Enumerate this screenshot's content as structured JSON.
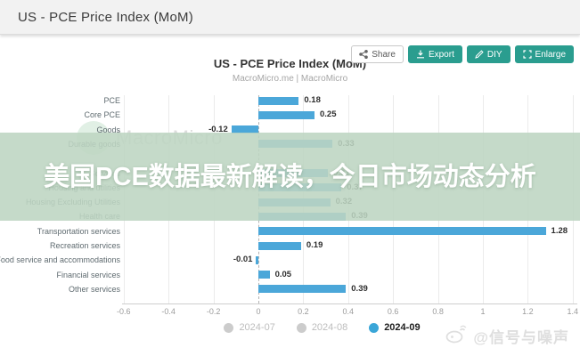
{
  "window": {
    "title": "US - PCE Price Index (MoM)"
  },
  "toolbar": {
    "share": "Share",
    "export": "Export",
    "diy": "DIY",
    "enlarge": "Enlarge"
  },
  "overlay_banner": {
    "text": "美国PCE数据最新解读，今日市场动态分析"
  },
  "watermarks": {
    "brand": "MacroMicro",
    "weibo_handle": "@信号与噪声"
  },
  "chart_data": {
    "type": "bar",
    "orientation": "horizontal",
    "title": "US - PCE Price Index (MoM)",
    "subtitle": "MacroMicro.me | MacroMicro",
    "xlim": [
      -0.6,
      1.4
    ],
    "x_ticks": [
      -0.6,
      -0.4,
      -0.2,
      0,
      0.2,
      0.4,
      0.6,
      0.8,
      1,
      1.2,
      1.4
    ],
    "bar_color": "#4BA7D9",
    "grid": true,
    "categories": [
      "PCE",
      "Core PCE",
      "Goods",
      "Durable goods",
      "",
      "Services",
      "Housing and utilities",
      "Housing Excluding Utilities",
      "Health care",
      "Transportation services",
      "Recreation services",
      "Food service and accommodations",
      "Financial services",
      "Other services"
    ],
    "values": [
      0.18,
      0.25,
      -0.12,
      0.33,
      null,
      0.31,
      0.37,
      0.32,
      0.39,
      1.28,
      0.19,
      -0.01,
      0.05,
      0.39
    ],
    "legend": [
      {
        "label": "2024-07",
        "active": false
      },
      {
        "label": "2024-08",
        "active": false
      },
      {
        "label": "2024-09",
        "active": true
      }
    ],
    "legend_position": "bottom"
  }
}
